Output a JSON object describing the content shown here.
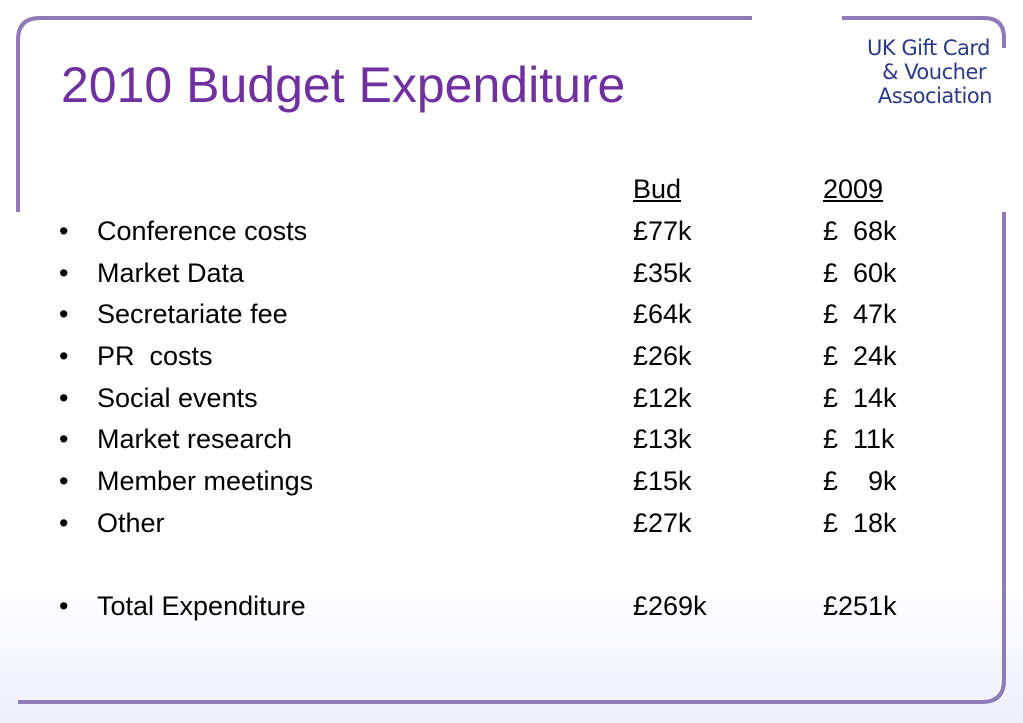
{
  "slide": {
    "title": "2010 Budget Expenditure"
  },
  "logo": {
    "line1": "UK Gift Card",
    "line2": "& Voucher",
    "line3": "Association"
  },
  "table": {
    "headers": {
      "bud": "Bud",
      "prev": "2009"
    },
    "rows": [
      {
        "bullet": "•",
        "label": "Conference costs",
        "bud": "£77k",
        "prev": "£  68k"
      },
      {
        "bullet": "•",
        "label": "Market Data",
        "bud": "£35k",
        "prev": "£  60k"
      },
      {
        "bullet": "•",
        "label": "Secretariate fee",
        "bud": "£64k",
        "prev": "£  47k"
      },
      {
        "bullet": "•",
        "label": "PR  costs",
        "bud": "£26k",
        "prev": "£  24k"
      },
      {
        "bullet": "•",
        "label": "Social events",
        "bud": "£12k",
        "prev": "£  14k"
      },
      {
        "bullet": "•",
        "label": "Market research",
        "bud": "£13k",
        "prev": "£  11k"
      },
      {
        "bullet": "•",
        "label": "Member meetings",
        "bud": "£15k",
        "prev": "£    9k"
      },
      {
        "bullet": "•",
        "label": "Other",
        "bud": "£27k",
        "prev": "£  18k"
      }
    ],
    "total": {
      "bullet": "•",
      "label": "Total Expenditure",
      "bud": "£269k",
      "prev": "£251k"
    }
  },
  "colors": {
    "title": "#7030a0",
    "frame": "#7b5ea8",
    "logo": "#2a3a8c"
  }
}
